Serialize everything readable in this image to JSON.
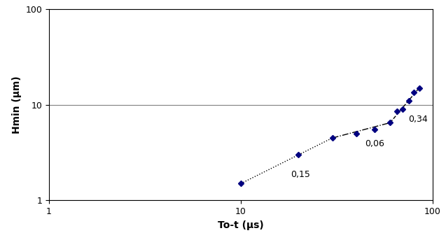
{
  "chart_data": {
    "type": "scatter",
    "x_label": "To-t (µs)",
    "y_label": "Hmin (µm)",
    "x": [
      10,
      20,
      30,
      40,
      50,
      60,
      65,
      70,
      75,
      80,
      85
    ],
    "values": [
      1.5,
      3.0,
      4.5,
      5.0,
      5.5,
      6.5,
      8.5,
      9.0,
      11.0,
      13.5,
      15.0
    ],
    "color": "#000080",
    "marker": "diamond",
    "segments": [
      {
        "label": "0,15",
        "x": [
          10,
          30
        ],
        "values": [
          1.5,
          4.5
        ],
        "line_style": "dotted",
        "color": "#000000"
      },
      {
        "label": "0,06",
        "x": [
          30,
          60
        ],
        "values": [
          4.5,
          6.5
        ],
        "line_style": "dashdot",
        "color": "#000000"
      },
      {
        "label": "0,34",
        "x": [
          60,
          85
        ],
        "values": [
          6.5,
          15.0
        ],
        "line_style": "dashed",
        "color": "#000000"
      }
    ],
    "log": true,
    "grid": "y",
    "xlim": [
      1,
      100
    ],
    "ylim": [
      1,
      100
    ],
    "xticks": [
      1,
      10,
      100
    ],
    "yticks": [
      1,
      10,
      100
    ]
  }
}
